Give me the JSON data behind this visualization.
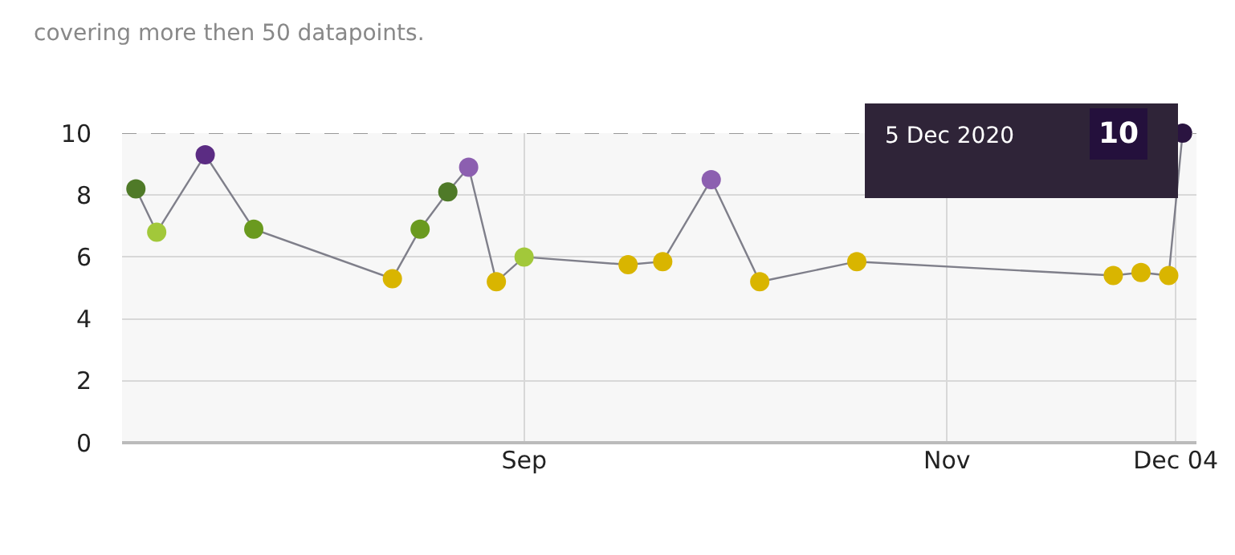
{
  "chart_data": {
    "type": "line",
    "x": [
      "2020-07-07",
      "2020-07-10",
      "2020-07-17",
      "2020-07-24",
      "2020-08-13",
      "2020-08-17",
      "2020-08-21",
      "2020-08-24",
      "2020-08-28",
      "2020-09-01",
      "2020-09-16",
      "2020-09-21",
      "2020-09-28",
      "2020-10-05",
      "2020-10-19",
      "2020-11-25",
      "2020-11-29",
      "2020-12-03",
      "2020-12-05"
    ],
    "values": [
      8.2,
      6.8,
      9.3,
      6.9,
      5.3,
      6.9,
      8.1,
      8.9,
      5.2,
      6.0,
      5.75,
      5.85,
      8.5,
      5.2,
      5.85,
      5.4,
      5.5,
      5.4,
      10
    ],
    "color": "#7f7f8a",
    "colors": [
      "#4f7a28",
      "#a2c83a",
      "#5b2c83",
      "#6a9a1f",
      "#d9b500",
      "#6a9a1f",
      "#4f7a28",
      "#8c5fb0",
      "#d9b500",
      "#a2c83a",
      "#d9b500",
      "#d9b500",
      "#8c5fb0",
      "#d9b500",
      "#d9b500",
      "#d9b500",
      "#d9b500",
      "#d9b500",
      "#2a1440"
    ],
    "marker": "circle",
    "xlim": [
      "2020-07-05",
      "2020-12-07"
    ],
    "xticks": [
      {
        "value": "2020-09-01",
        "label": "Sep"
      },
      {
        "value": "2020-11-01",
        "label": "Nov"
      },
      {
        "value": "2020-12-04",
        "label": "Dec 04"
      }
    ],
    "ylim": [
      0,
      10
    ],
    "yticks": [
      0,
      2,
      4,
      6,
      8,
      10
    ],
    "grid": true,
    "ref_lines": [
      {
        "axis": "y",
        "value": 10,
        "color": "#999999",
        "line_style": "dashed"
      }
    ],
    "annotations": [
      "covering more then 50 datapoints.",
      "5 Dec 2020",
      "10"
    ]
  }
}
